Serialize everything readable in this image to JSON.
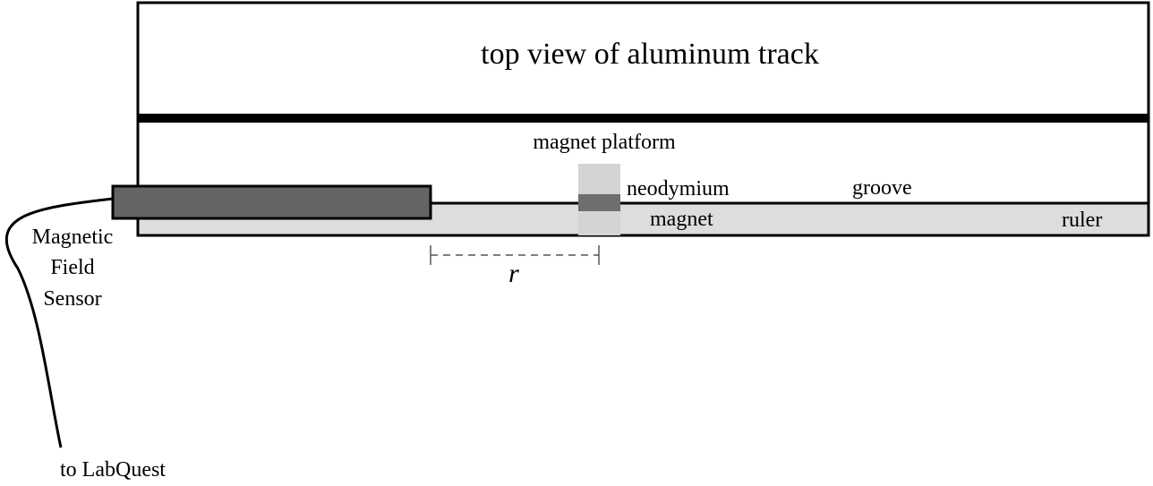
{
  "labels": {
    "track_title": "top view of aluminum track",
    "platform": "magnet platform",
    "magnet_line1": "neodymium",
    "magnet_line2": "magnet",
    "groove": "groove",
    "ruler": "ruler",
    "sensor_line1": "Magnetic",
    "sensor_line2": "Field",
    "sensor_line3": "Sensor",
    "labquest": "to LabQuest",
    "distance": "r"
  },
  "colors": {
    "outline": "#000000",
    "sensor": "#646464",
    "ruler": "#dddddd",
    "platform": "#d4d4d4",
    "magnet": "#6e6e6e",
    "dimension": "#555555"
  }
}
